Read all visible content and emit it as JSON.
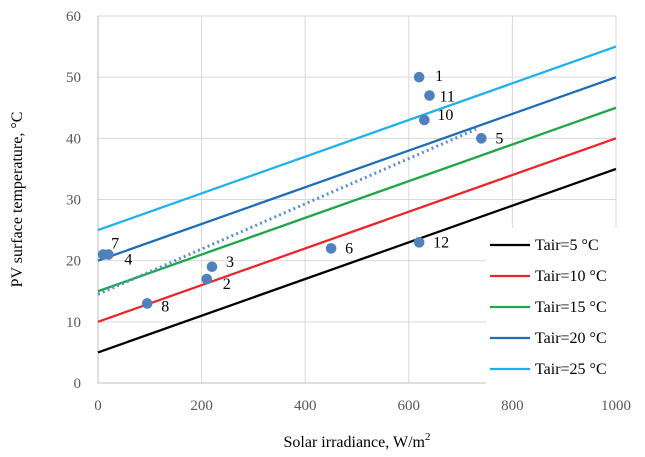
{
  "chart_data": {
    "type": "scatter",
    "title": "",
    "xlabel": "Solar irradiance, W/m",
    "xlabel_sup": "2",
    "ylabel": "PV surface temperature, °C",
    "xlim": [
      0,
      1000
    ],
    "ylim": [
      0,
      60
    ],
    "x_ticks": [
      0,
      200,
      400,
      600,
      800,
      1000
    ],
    "y_ticks": [
      0,
      10,
      20,
      30,
      40,
      50,
      60
    ],
    "grid": true,
    "legend_position": "right",
    "lines": [
      {
        "name": "Tair=5 °C",
        "color": "#000000",
        "x": [
          0,
          1000
        ],
        "y": [
          5,
          35
        ]
      },
      {
        "name": "Tair=10 °C",
        "color": "#e8262b",
        "x": [
          0,
          1000
        ],
        "y": [
          10,
          40
        ]
      },
      {
        "name": "Tair=15 °C",
        "color": "#21a64a",
        "x": [
          0,
          1000
        ],
        "y": [
          15,
          45
        ]
      },
      {
        "name": "Tair=20 °C",
        "color": "#1f6db5",
        "x": [
          0,
          1000
        ],
        "y": [
          20,
          50
        ]
      },
      {
        "name": "Tair=25 °C",
        "color": "#1eb2ea",
        "x": [
          0,
          1000
        ],
        "y": [
          25,
          55
        ]
      }
    ],
    "trendline": {
      "color": "#5b8fc9",
      "x": [
        0,
        730
      ],
      "y": [
        14.5,
        41.5
      ]
    },
    "points": [
      {
        "label": "1",
        "x": 620,
        "y": 50
      },
      {
        "label": "2",
        "x": 210,
        "y": 17
      },
      {
        "label": "3",
        "x": 220,
        "y": 19
      },
      {
        "label": "4",
        "x": 20,
        "y": 21
      },
      {
        "label": "5",
        "x": 740,
        "y": 40
      },
      {
        "label": "6",
        "x": 450,
        "y": 22
      },
      {
        "label": "7",
        "x": 10,
        "y": 21
      },
      {
        "label": "8",
        "x": 95,
        "y": 13
      },
      {
        "label": "10",
        "x": 630,
        "y": 43
      },
      {
        "label": "11",
        "x": 640,
        "y": 47
      },
      {
        "label": "12",
        "x": 620,
        "y": 23
      }
    ],
    "point_color": "#4f81bd"
  }
}
